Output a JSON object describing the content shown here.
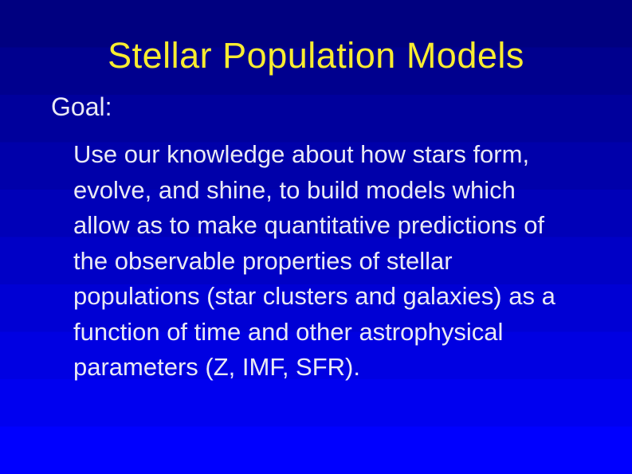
{
  "slide": {
    "title": "Stellar Population Models",
    "goal_label": "Goal:",
    "body_lines": {
      "0": "Use our knowledge about how stars form,",
      "1": "evolve, and shine, to build models which",
      "2": "allow as to make quantitative predictions of",
      "3": "the observable properties of stellar",
      "4": "populations (star clusters and galaxies) as a",
      "5": "function of time and other astrophysical",
      "6": "parameters (Z, IMF, SFR)."
    },
    "colors": {
      "background_top": "#000080",
      "background_bottom": "#0000FF",
      "title_text": "#F8EC30",
      "body_text": "#EAEAF4"
    }
  }
}
